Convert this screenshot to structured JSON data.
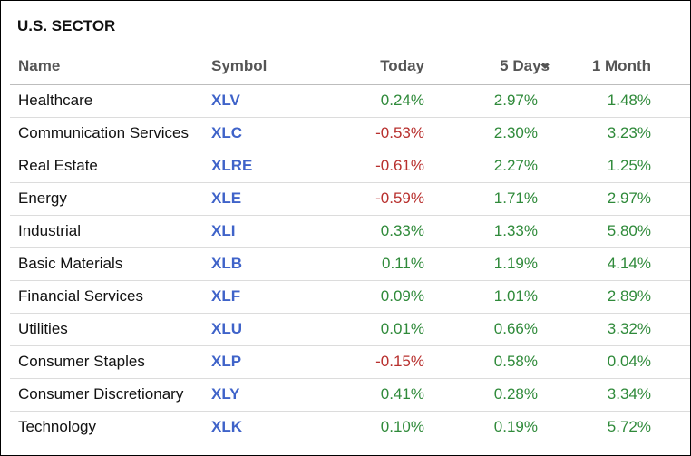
{
  "header": {
    "title": "U.S. SECTOR"
  },
  "table": {
    "columns": [
      "Name",
      "Symbol",
      "Today",
      "5 Days",
      "1 Month"
    ],
    "rows": [
      [
        "Healthcare",
        "XLV",
        "0.24%",
        "2.97%",
        "1.48%"
      ],
      [
        "Communication Services",
        "XLC",
        "-0.53%",
        "2.30%",
        "3.23%"
      ],
      [
        "Real Estate",
        "XLRE",
        "-0.61%",
        "2.27%",
        "1.25%"
      ],
      [
        "Energy",
        "XLE",
        "-0.59%",
        "1.71%",
        "2.97%"
      ],
      [
        "Industrial",
        "XLI",
        "0.33%",
        "1.33%",
        "5.80%"
      ],
      [
        "Basic Materials",
        "XLB",
        "0.11%",
        "1.19%",
        "4.14%"
      ],
      [
        "Financial Services",
        "XLF",
        "0.09%",
        "1.01%",
        "2.89%"
      ],
      [
        "Utilities",
        "XLU",
        "0.01%",
        "0.66%",
        "3.32%"
      ],
      [
        "Consumer Staples",
        "XLP",
        "-0.15%",
        "0.58%",
        "0.04%"
      ],
      [
        "Consumer Discretionary",
        "XLY",
        "0.41%",
        "0.28%",
        "3.34%"
      ],
      [
        "Technology",
        "XLK",
        "0.10%",
        "0.19%",
        "5.72%"
      ]
    ]
  }
}
